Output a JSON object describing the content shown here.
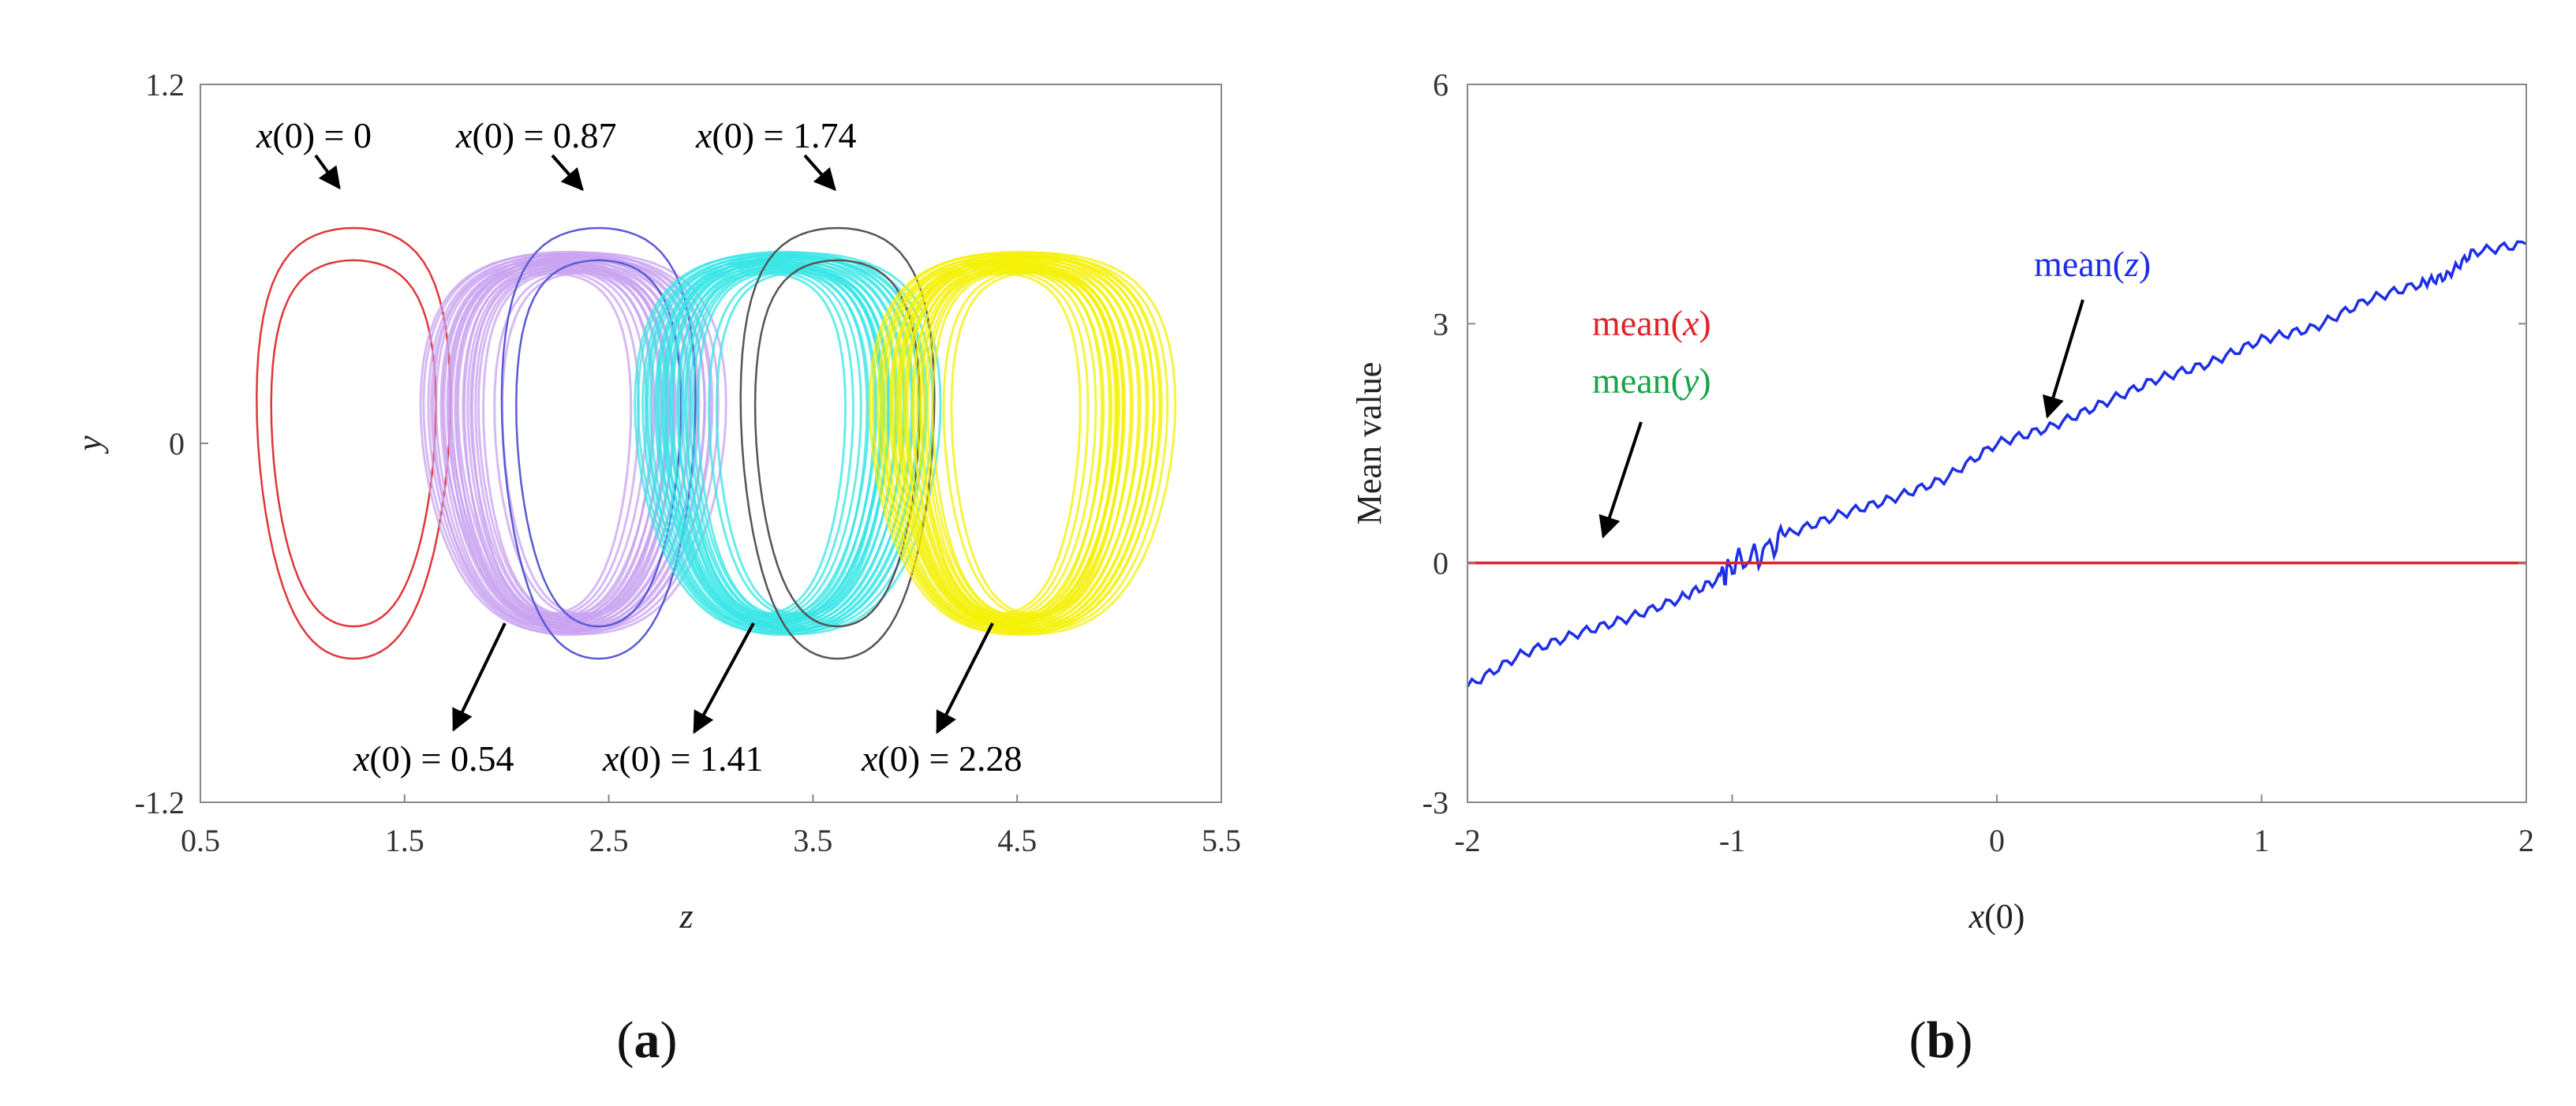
{
  "chart_data": [
    {
      "panel": "a",
      "type": "line",
      "subtype": "phase-portrait",
      "panel_label_open": "(",
      "panel_label_letter": "a",
      "panel_label_close": ")",
      "xlabel": "z",
      "ylabel": "y",
      "xlim": [
        0.5,
        5.5
      ],
      "ylim": [
        -1.2,
        1.2
      ],
      "xticks": [
        "0.5",
        "1.5",
        "2.5",
        "3.5",
        "4.5",
        "5.5"
      ],
      "yticks": [
        "1.2",
        "0",
        "-1.2"
      ],
      "series": [
        {
          "name": "x(0) = 0",
          "kind": "periodic",
          "color": "#e0363a",
          "center": 1.25,
          "half_width": 0.55,
          "height": 0.9
        },
        {
          "name": "x(0) = 0.54",
          "kind": "chaotic",
          "color": "#c8a2f0",
          "center": 2.3,
          "half_width": 0.82,
          "height": 0.8
        },
        {
          "name": "x(0) = 0.87",
          "kind": "periodic",
          "color": "#5a5ad6",
          "center": 2.45,
          "half_width": 0.55,
          "height": 0.9
        },
        {
          "name": "x(0) = 1.41",
          "kind": "chaotic",
          "color": "#35e6e6",
          "center": 3.35,
          "half_width": 0.82,
          "height": 0.8
        },
        {
          "name": "x(0) = 1.74",
          "kind": "periodic",
          "color": "#555555",
          "center": 3.62,
          "half_width": 0.55,
          "height": 0.9
        },
        {
          "name": "x(0) = 2.28",
          "kind": "chaotic",
          "color": "#f4f000",
          "center": 4.5,
          "half_width": 0.82,
          "height": 0.8
        }
      ],
      "annotations": [
        {
          "pre": "x",
          "post": "(0) = 0"
        },
        {
          "pre": "x",
          "post": "(0) = 0.87"
        },
        {
          "pre": "x",
          "post": "(0) = 1.74"
        },
        {
          "pre": "x",
          "post": "(0) = 0.54"
        },
        {
          "pre": "x",
          "post": "(0) = 1.41"
        },
        {
          "pre": "x",
          "post": "(0) = 2.28"
        }
      ]
    },
    {
      "panel": "b",
      "type": "line",
      "panel_label_open": "(",
      "panel_label_letter": "b",
      "panel_label_close": ")",
      "xlabel_var": "x",
      "xlabel_rest": "(0)",
      "ylabel": "Mean value",
      "xlim": [
        -2,
        2
      ],
      "ylim": [
        -3,
        6
      ],
      "xticks": [
        "-2",
        "-1",
        "0",
        "1",
        "2"
      ],
      "yticks": [
        "6",
        "3",
        "0",
        "-3"
      ],
      "series": [
        {
          "name": "mean(z)",
          "color": "#1d2ee6",
          "x": [
            -2,
            -1.8,
            -1.6,
            -1.4,
            -1.2,
            -1.05,
            -1.0,
            -0.9,
            -0.8,
            -0.6,
            -0.4,
            -0.2,
            0,
            0.2,
            0.4,
            0.6,
            0.8,
            1.0,
            1.2,
            1.4,
            1.6,
            1.7,
            1.8,
            2.0
          ],
          "values": [
            -1.55,
            -1.15,
            -0.9,
            -0.7,
            -0.45,
            -0.2,
            -0.02,
            0.1,
            0.35,
            0.6,
            0.8,
            1.05,
            1.5,
            1.7,
            2.0,
            2.3,
            2.5,
            2.8,
            2.95,
            3.3,
            3.5,
            3.6,
            3.9,
            4.0
          ]
        },
        {
          "name": "mean(x)",
          "color": "#e0232a",
          "x": [
            -2,
            2
          ],
          "values": [
            0,
            0
          ]
        },
        {
          "name": "mean(y)",
          "color": "#17a34a",
          "x": [
            -2,
            2
          ],
          "values": [
            0,
            0
          ]
        }
      ],
      "annotations": [
        {
          "pre": "mean(",
          "var": "x",
          "post": ")",
          "color": "#e0232a"
        },
        {
          "pre": "mean(",
          "var": "y",
          "post": ")",
          "color": "#17a34a"
        },
        {
          "pre": "mean(",
          "var": "z",
          "post": ")",
          "color": "#1d2ee6"
        }
      ]
    }
  ]
}
